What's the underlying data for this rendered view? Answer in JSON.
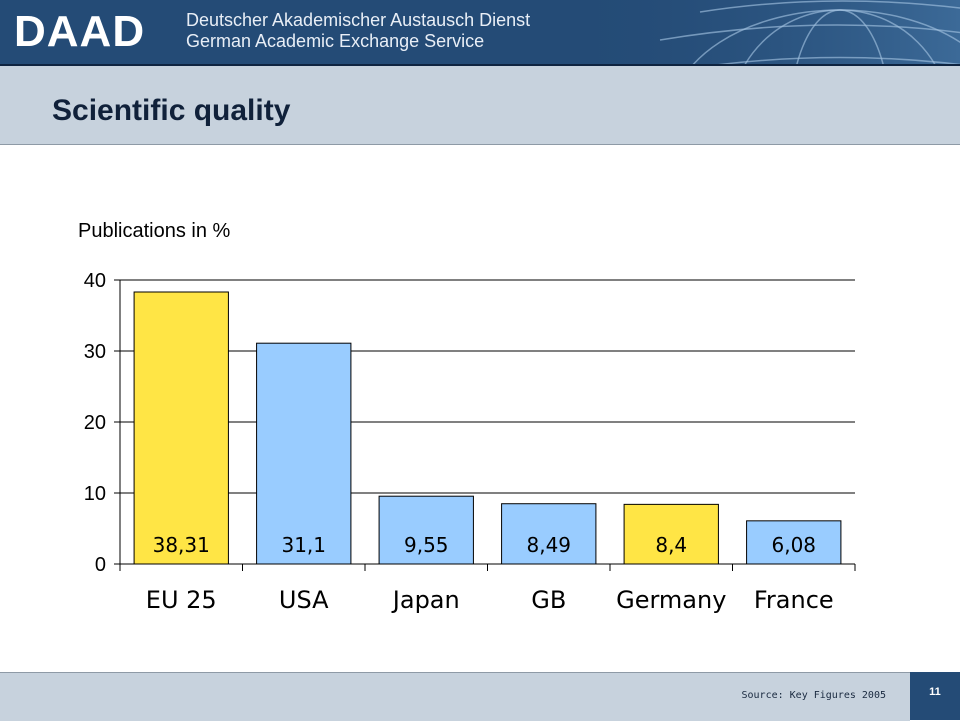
{
  "header": {
    "logo": "DAAD",
    "org_name_de": "Deutscher Akademischer Austausch Dienst",
    "org_name_en": "German Academic Exchange Service"
  },
  "slide": {
    "title": "Scientific quality",
    "subtitle": "Publications  in %"
  },
  "footer": {
    "source": "Source: Key Figures 2005",
    "page_number": "11"
  },
  "colors": {
    "highlight": "#FFE545",
    "default": "#99CCFF"
  },
  "chart_data": {
    "type": "bar",
    "categories": [
      "EU 25",
      "USA",
      "Japan",
      "GB",
      "Germany",
      "France"
    ],
    "values": [
      38.31,
      31.1,
      9.55,
      8.49,
      8.4,
      6.08
    ],
    "value_labels": [
      "38,31",
      "31,1",
      "9,55",
      "8,49",
      "8,4",
      "6,08"
    ],
    "bar_colors": [
      "#FFE545",
      "#99CCFF",
      "#99CCFF",
      "#99CCFF",
      "#FFE545",
      "#99CCFF"
    ],
    "ylim": [
      0,
      40
    ],
    "yticks": [
      "0",
      "10",
      "20",
      "30",
      "40"
    ],
    "grid": true
  }
}
